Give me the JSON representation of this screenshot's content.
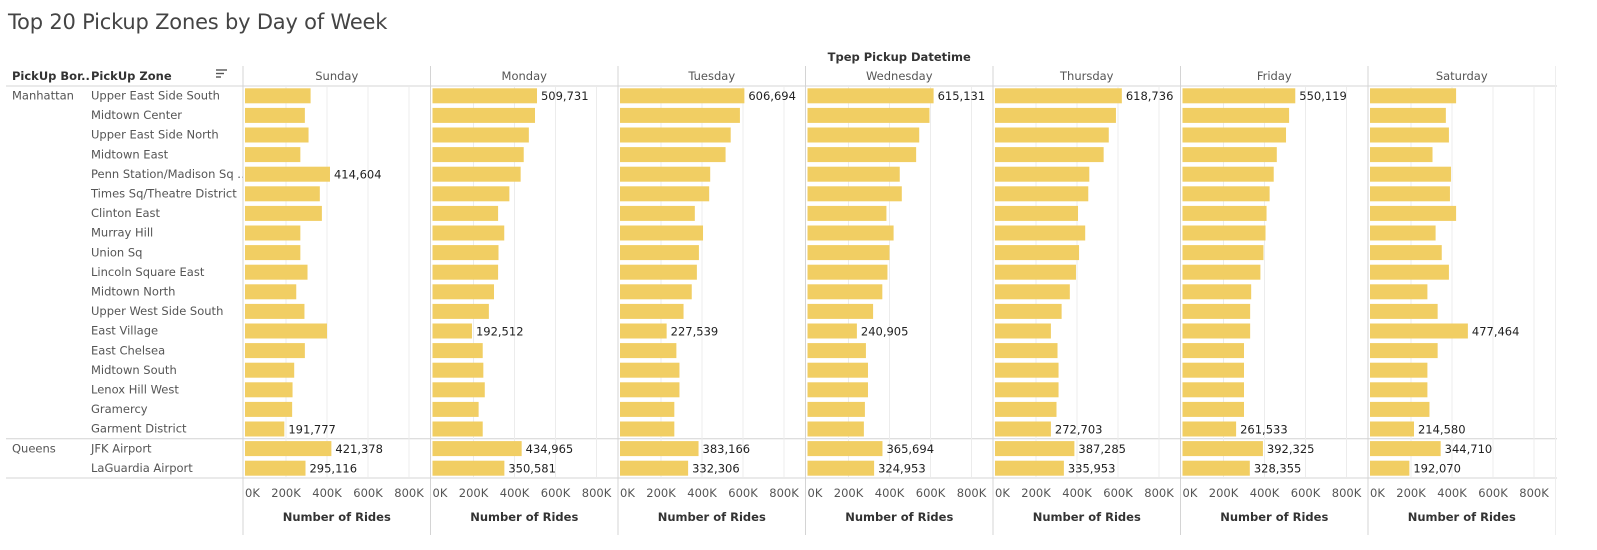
{
  "title": "Top 20 Pickup Zones by Day of Week",
  "chart_data": {
    "type": "bar",
    "orientation": "horizontal",
    "title": "Top 20 Pickup Zones by Day of Week",
    "column_header": "Tpep Pickup Datetime",
    "row_headers": [
      "PickUp Bor..",
      "PickUp Zone"
    ],
    "sort_icon": "sort-descending-icon",
    "xlabel": "Number of Rides",
    "xlim": [
      0,
      900000
    ],
    "x_ticks": [
      "0K",
      "200K",
      "400K",
      "600K",
      "800K"
    ],
    "x_tick_values": [
      0,
      200000,
      400000,
      600000,
      800000
    ],
    "bar_color": "#f1ce63",
    "grid": true,
    "boroughs": [
      {
        "name": "Manhattan",
        "count": 18
      },
      {
        "name": "Queens",
        "count": 2
      }
    ],
    "categories": [
      "Upper East Side South",
      "Midtown Center",
      "Upper East Side North",
      "Midtown East",
      "Penn Station/Madison Sq ..",
      "Times Sq/Theatre District",
      "Clinton East",
      "Murray Hill",
      "Union Sq",
      "Lincoln Square East",
      "Midtown North",
      "Upper West Side South",
      "East Village",
      "East Chelsea",
      "Midtown South",
      "Lenox Hill West",
      "Gramercy",
      "Garment District",
      "JFK Airport",
      "LaGuardia Airport"
    ],
    "series": [
      {
        "name": "Sunday",
        "values": [
          320000,
          292000,
          310000,
          270000,
          414604,
          365000,
          375000,
          270000,
          270000,
          305000,
          250000,
          290000,
          400000,
          292000,
          240000,
          232000,
          230000,
          191777,
          421378,
          295116
        ],
        "labels": [
          null,
          null,
          null,
          null,
          "414,604",
          null,
          null,
          null,
          null,
          null,
          null,
          null,
          null,
          null,
          null,
          null,
          null,
          "191,777",
          "421,378",
          "295,116"
        ]
      },
      {
        "name": "Monday",
        "values": [
          509731,
          500000,
          470000,
          445000,
          430000,
          375000,
          320000,
          350000,
          322000,
          320000,
          300000,
          275000,
          192512,
          245000,
          248000,
          255000,
          225000,
          245000,
          434965,
          350581
        ],
        "labels": [
          "509,731",
          null,
          null,
          null,
          null,
          null,
          null,
          null,
          null,
          null,
          null,
          null,
          "192,512",
          null,
          null,
          null,
          null,
          null,
          "434,965",
          "350,581"
        ]
      },
      {
        "name": "Tuesday",
        "values": [
          606694,
          585000,
          540000,
          515000,
          440000,
          435000,
          365000,
          405000,
          385000,
          375000,
          350000,
          310000,
          227539,
          275000,
          290000,
          290000,
          265000,
          265000,
          383166,
          332306
        ],
        "labels": [
          "606,694",
          null,
          null,
          null,
          null,
          null,
          null,
          null,
          null,
          null,
          null,
          null,
          "227,539",
          null,
          null,
          null,
          null,
          null,
          "383,166",
          "332,306"
        ]
      },
      {
        "name": "Wednesday",
        "values": [
          615131,
          595000,
          545000,
          530000,
          450000,
          460000,
          385000,
          420000,
          400000,
          390000,
          365000,
          320000,
          240905,
          285000,
          295000,
          295000,
          280000,
          275000,
          365694,
          324953
        ],
        "labels": [
          "615,131",
          null,
          null,
          null,
          null,
          null,
          null,
          null,
          null,
          null,
          null,
          null,
          "240,905",
          null,
          null,
          null,
          null,
          null,
          "365,694",
          "324,953"
        ]
      },
      {
        "name": "Thursday",
        "values": [
          618736,
          590000,
          555000,
          530000,
          460000,
          455000,
          405000,
          440000,
          410000,
          395000,
          365000,
          325000,
          272703,
          305000,
          310000,
          310000,
          300000,
          272703,
          387285,
          335953
        ],
        "labels": [
          "618,736",
          null,
          null,
          null,
          null,
          null,
          null,
          null,
          null,
          null,
          null,
          null,
          null,
          null,
          null,
          null,
          null,
          "272,703",
          "387,285",
          "335,953"
        ]
      },
      {
        "name": "Friday",
        "values": [
          550119,
          520000,
          505000,
          460000,
          445000,
          425000,
          410000,
          405000,
          395000,
          380000,
          335000,
          330000,
          330000,
          300000,
          300000,
          300000,
          300000,
          261533,
          392325,
          328355
        ],
        "labels": [
          "550,119",
          null,
          null,
          null,
          null,
          null,
          null,
          null,
          null,
          null,
          null,
          null,
          null,
          null,
          null,
          null,
          null,
          "261,533",
          "392,325",
          "328,355"
        ]
      },
      {
        "name": "Saturday",
        "values": [
          420000,
          370000,
          385000,
          305000,
          395000,
          390000,
          420000,
          320000,
          350000,
          385000,
          280000,
          330000,
          477464,
          330000,
          280000,
          280000,
          290000,
          214580,
          344710,
          192070
        ],
        "labels": [
          null,
          null,
          null,
          null,
          null,
          null,
          null,
          null,
          null,
          null,
          null,
          null,
          "477,464",
          null,
          null,
          null,
          null,
          "214,580",
          "344,710",
          "192,070"
        ]
      }
    ]
  }
}
